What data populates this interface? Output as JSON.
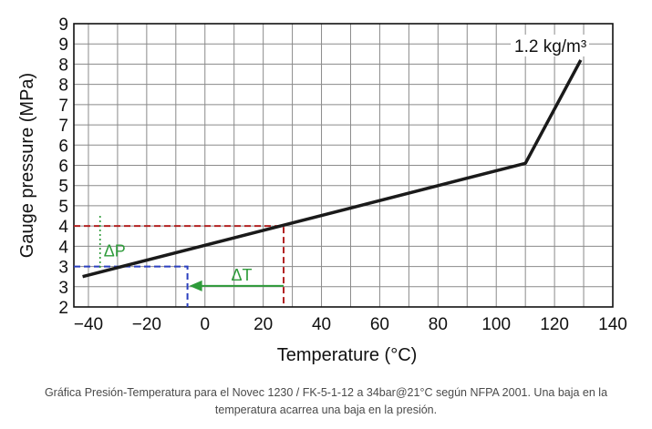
{
  "chart_data": {
    "type": "line",
    "title": "",
    "xlabel": "Temperature (°C)",
    "ylabel": "Gauge pressure (MPa)",
    "xlim": [
      -45,
      140
    ],
    "ylim": [
      2,
      9
    ],
    "x_ticks": [
      "−40",
      "−20",
      "0",
      "20",
      "40",
      "60",
      "80",
      "100",
      "120",
      "140"
    ],
    "x_tick_values": [
      -40,
      -20,
      0,
      20,
      40,
      60,
      80,
      100,
      120,
      140
    ],
    "y_ticks_left": [
      "9",
      "9",
      "8",
      "8",
      "7",
      "7",
      "6",
      "6",
      "5",
      "5",
      "4",
      "4",
      "3",
      "3",
      "2"
    ],
    "y_tick_values": [
      9,
      8.5,
      8,
      7.5,
      7,
      6.5,
      6,
      5.5,
      5,
      4.5,
      4,
      3.5,
      3,
      2.5,
      2
    ],
    "grid": true,
    "series": [
      {
        "name": "1.2 kg/m³",
        "x": [
          -42,
          110,
          129
        ],
        "y": [
          2.75,
          5.55,
          8.1
        ]
      }
    ],
    "annotations": {
      "curve_label": "1.2 kg/m³",
      "delta_p": "ΔP",
      "delta_t": "ΔT",
      "ref_high": {
        "x": 27,
        "y": 4
      },
      "ref_low": {
        "x": -6,
        "y": 3
      }
    },
    "colors": {
      "curve": "#1a1a1a",
      "high_ref": "#b22222",
      "low_ref": "#2a3fbf",
      "delta": "#2e9b3a",
      "grid": "#8a8a8a"
    }
  },
  "caption": {
    "line1": "Gráfica Presión-Temperatura para el Novec 1230 / FK-5-1-12 a 34bar@21°C según NFPA 2001. Una baja en la",
    "line2": "temperatura acarrea una baja en la presión."
  }
}
